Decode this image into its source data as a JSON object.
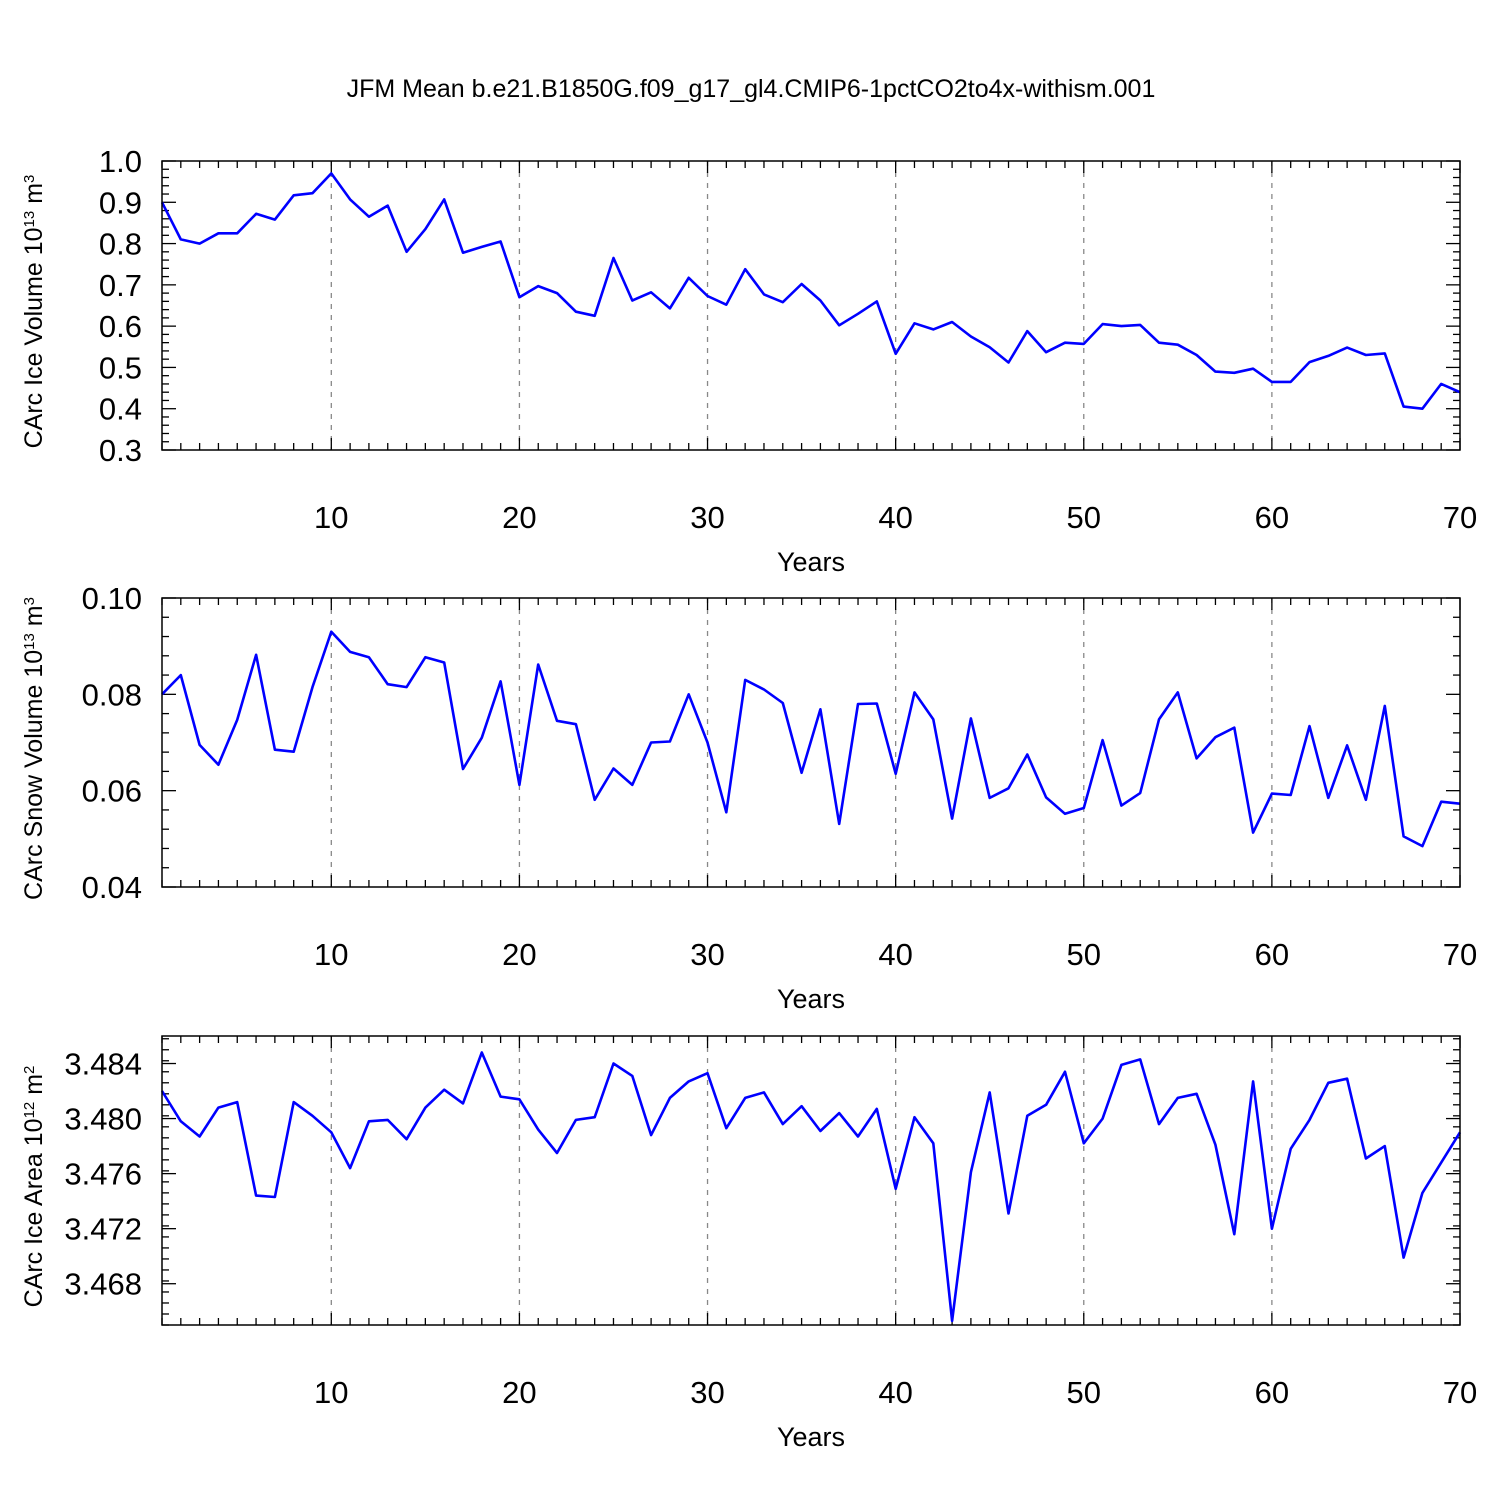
{
  "title": "JFM Mean b.e21.B1850G.f09_g17_gl4.CMIP6-1pctCO2to4x-withism.001",
  "colors": {
    "line": "#0000ff",
    "axis": "#000000",
    "grid": "#888888"
  },
  "chart_data": [
    {
      "type": "line",
      "xlabel": "Years",
      "ylabel": "CArc Ice Volume 10",
      "ylabel_exp": "13",
      "ylabel_unit": " m",
      "ylabel_unit_exp": "3",
      "xlim": [
        1,
        70
      ],
      "ylim": [
        0.3,
        1.0
      ],
      "xticks": [
        10,
        20,
        30,
        40,
        50,
        60,
        70
      ],
      "yticks": [
        0.3,
        0.4,
        0.5,
        0.6,
        0.7,
        0.8,
        0.9,
        1.0
      ],
      "ytick_labels": [
        "0.3",
        "0.4",
        "0.5",
        "0.6",
        "0.7",
        "0.8",
        "0.9",
        "1.0"
      ],
      "grid": "vertical dashed at major x ticks",
      "values": [
        0.9,
        0.81,
        0.8,
        0.825,
        0.825,
        0.872,
        0.858,
        0.917,
        0.922,
        0.97,
        0.907,
        0.865,
        0.892,
        0.78,
        0.835,
        0.907,
        0.778,
        0.792,
        0.805,
        0.67,
        0.697,
        0.68,
        0.635,
        0.625,
        0.765,
        0.662,
        0.682,
        0.643,
        0.717,
        0.673,
        0.652,
        0.738,
        0.677,
        0.658,
        0.702,
        0.662,
        0.602,
        0.63,
        0.66,
        0.533,
        0.607,
        0.592,
        0.61,
        0.575,
        0.549,
        0.512,
        0.588,
        0.537,
        0.56,
        0.557,
        0.605,
        0.6,
        0.603,
        0.56,
        0.555,
        0.53,
        0.49,
        0.487,
        0.497,
        0.465,
        0.465,
        0.513,
        0.528,
        0.548,
        0.53,
        0.534,
        0.405,
        0.4,
        0.46,
        0.44
      ]
    },
    {
      "type": "line",
      "xlabel": "Years",
      "ylabel": "CArc Snow Volume 10",
      "ylabel_exp": "13",
      "ylabel_unit": " m",
      "ylabel_unit_exp": "3",
      "xlim": [
        1,
        70
      ],
      "ylim": [
        0.04,
        0.1
      ],
      "xticks": [
        10,
        20,
        30,
        40,
        50,
        60,
        70
      ],
      "yticks": [
        0.04,
        0.06,
        0.08,
        0.1
      ],
      "ytick_labels": [
        "0.04",
        "0.06",
        "0.08",
        "0.10"
      ],
      "grid": "vertical dashed at major x ticks",
      "values": [
        0.08,
        0.084,
        0.0695,
        0.0654,
        0.0747,
        0.0882,
        0.0685,
        0.0681,
        0.0815,
        0.093,
        0.0888,
        0.0877,
        0.0821,
        0.0815,
        0.0877,
        0.0866,
        0.0645,
        0.071,
        0.0827,
        0.0612,
        0.0862,
        0.0745,
        0.0738,
        0.0581,
        0.0646,
        0.0612,
        0.07,
        0.0702,
        0.08,
        0.07,
        0.0555,
        0.083,
        0.081,
        0.0782,
        0.0637,
        0.0769,
        0.0531,
        0.078,
        0.0781,
        0.0635,
        0.0804,
        0.0748,
        0.0542,
        0.075,
        0.0585,
        0.0605,
        0.0675,
        0.0586,
        0.0552,
        0.0564,
        0.0705,
        0.0569,
        0.0595,
        0.0748,
        0.0804,
        0.0667,
        0.0711,
        0.0731,
        0.0513,
        0.0594,
        0.0591,
        0.0734,
        0.0585,
        0.0694,
        0.0581,
        0.0776,
        0.0505,
        0.0485,
        0.0577,
        0.0573
      ]
    },
    {
      "type": "line",
      "xlabel": "Years",
      "ylabel": "CArc Ice Area 10",
      "ylabel_exp": "12",
      "ylabel_unit": " m",
      "ylabel_unit_exp": "2",
      "xlim": [
        1,
        70
      ],
      "ylim": [
        3.465,
        3.486
      ],
      "xticks": [
        10,
        20,
        30,
        40,
        50,
        60,
        70
      ],
      "yticks": [
        3.468,
        3.472,
        3.476,
        3.48,
        3.484
      ],
      "ytick_labels": [
        "3.468",
        "3.472",
        "3.476",
        "3.480",
        "3.484"
      ],
      "grid": "vertical dashed at major x ticks",
      "values": [
        3.482,
        3.4798,
        3.4787,
        3.4808,
        3.4812,
        3.4744,
        3.4743,
        3.4812,
        3.4802,
        3.479,
        3.4764,
        3.4798,
        3.4799,
        3.4785,
        3.4808,
        3.4821,
        3.4811,
        3.4848,
        3.4816,
        3.4814,
        3.4792,
        3.4775,
        3.4799,
        3.4801,
        3.484,
        3.4831,
        3.4788,
        3.4815,
        3.4827,
        3.4833,
        3.4793,
        3.4815,
        3.4819,
        3.4796,
        3.4809,
        3.4791,
        3.4804,
        3.4787,
        3.4807,
        3.4749,
        3.4801,
        3.4782,
        3.4653,
        3.4761,
        3.4819,
        3.4731,
        3.4802,
        3.481,
        3.4834,
        3.4782,
        3.48,
        3.4839,
        3.4843,
        3.4796,
        3.4815,
        3.4818,
        3.4781,
        3.4716,
        3.4827,
        3.472,
        3.4778,
        3.4799,
        3.4826,
        3.4829,
        3.4771,
        3.478,
        3.4699,
        3.4746,
        3.4768,
        3.479
      ]
    }
  ]
}
